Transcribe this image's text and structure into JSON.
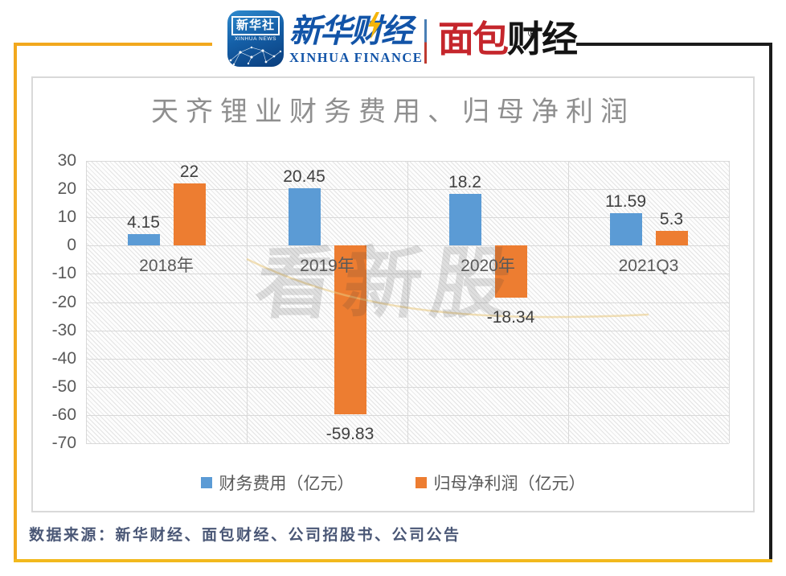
{
  "header": {
    "xinhua_news_icon": {
      "title": "新华社",
      "subtitle": "XINHUA NEWS"
    },
    "xinhua_finance_logo": {
      "cn": "新华财经",
      "en": "XINHUA FINANCE"
    },
    "mianbao_logo": {
      "red": "面包",
      "black": "财经",
      "reg": "®"
    }
  },
  "chart_data": {
    "type": "bar",
    "title": "天齐锂业财务费用、归母净利润",
    "categories": [
      "2018年",
      "2019年",
      "2020年",
      "2021Q3"
    ],
    "series": [
      {
        "name": "财务费用（亿元）",
        "color": "#5B9BD5",
        "values": [
          4.15,
          20.45,
          18.2,
          11.59
        ],
        "labels": [
          "4.15",
          "20.45",
          "18.2",
          "11.59"
        ]
      },
      {
        "name": "归母净利润（亿元）",
        "color": "#ED7D31",
        "values": [
          22,
          -59.83,
          -18.34,
          5.3
        ],
        "labels": [
          "22",
          "-59.83",
          "-18.34",
          "5.3"
        ]
      }
    ],
    "ylim": [
      -70,
      30
    ],
    "yticks": [
      30,
      20,
      10,
      0,
      -10,
      -20,
      -30,
      -40,
      -50,
      -60,
      -70
    ],
    "grid": true,
    "legend_position": "bottom",
    "plot_background": "diagonal-hatch"
  },
  "watermark": {
    "text": "看新股"
  },
  "footer": {
    "source": "数据来源：新华财经、面包财经、公司招股书、公司公告"
  },
  "colors": {
    "bar_blue": "#5B9BD5",
    "bar_orange": "#ED7D31",
    "frame_yellow": "#F2A81D",
    "frame_black": "#1B1B1B",
    "brand_blue": "#1254A8",
    "brand_red": "#C5262C",
    "grid_line": "#D9D9D9",
    "title_gray": "#8F8F8F"
  }
}
